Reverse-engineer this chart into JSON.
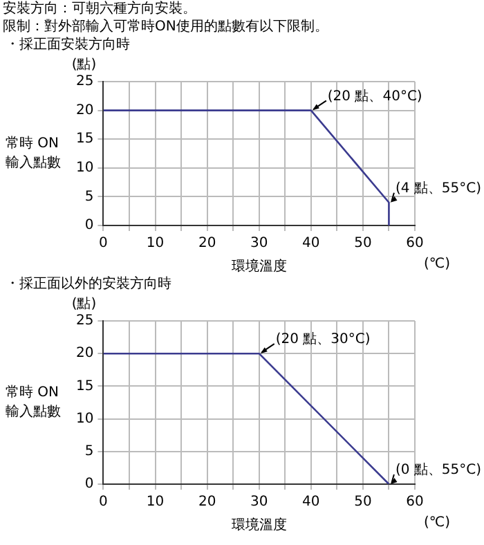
{
  "chart_data": [
    {
      "type": "other",
      "annotations": [
        "安裝方向：可朝六種方向安裝。",
        "限制：對外部輸入可常時ON使用的點數有以下限制。"
      ]
    },
    {
      "type": "line",
      "title": "・採正面安裝方向時",
      "xlabel": "環境溫度",
      "ylabel": "常時 ON\n輸入點數",
      "x": [
        0,
        40,
        55,
        55
      ],
      "series": [
        {
          "color": "#3b3b8f",
          "values": [
            20,
            20,
            4,
            0
          ]
        }
      ],
      "xlim": [
        0,
        60
      ],
      "xticks": [
        0,
        {
          "value": 5,
          "label": null
        },
        10,
        {
          "value": 15,
          "label": null
        },
        20,
        {
          "value": 25,
          "label": null
        },
        30,
        {
          "value": 35,
          "label": null
        },
        40,
        {
          "value": 45,
          "label": null
        },
        50,
        {
          "value": 55,
          "label": null
        },
        60
      ],
      "ylim": [
        0,
        25
      ],
      "yticks": [
        0,
        5,
        10,
        15,
        20,
        25
      ],
      "grid": true,
      "annotations": [
        "(點)",
        "(℃)",
        {
          "text": "(20 點、40°C)",
          "x": 40,
          "y": 20
        },
        {
          "text": "(4 點、55°C)",
          "x": 55,
          "y": 4
        }
      ]
    },
    {
      "type": "line",
      "title": "・採正面以外的安裝方向時",
      "xlabel": "環境溫度",
      "ylabel": "常時 ON\n輸入點數",
      "x": [
        0,
        30,
        55
      ],
      "series": [
        {
          "color": "#3b3b8f",
          "values": [
            20,
            20,
            0
          ]
        }
      ],
      "xlim": [
        0,
        60
      ],
      "xticks": [
        0,
        {
          "value": 5,
          "label": null
        },
        10,
        {
          "value": 15,
          "label": null
        },
        20,
        {
          "value": 25,
          "label": null
        },
        30,
        {
          "value": 35,
          "label": null
        },
        40,
        {
          "value": 45,
          "label": null
        },
        50,
        {
          "value": 55,
          "label": null
        },
        60
      ],
      "ylim": [
        0,
        25
      ],
      "yticks": [
        0,
        5,
        10,
        15,
        20,
        25
      ],
      "grid": true,
      "annotations": [
        "(點)",
        "(℃)",
        {
          "text": "(20 點、30°C)",
          "x": 30,
          "y": 20
        },
        {
          "text": "(0 點、55°C)",
          "x": 55,
          "y": 0
        }
      ]
    }
  ]
}
